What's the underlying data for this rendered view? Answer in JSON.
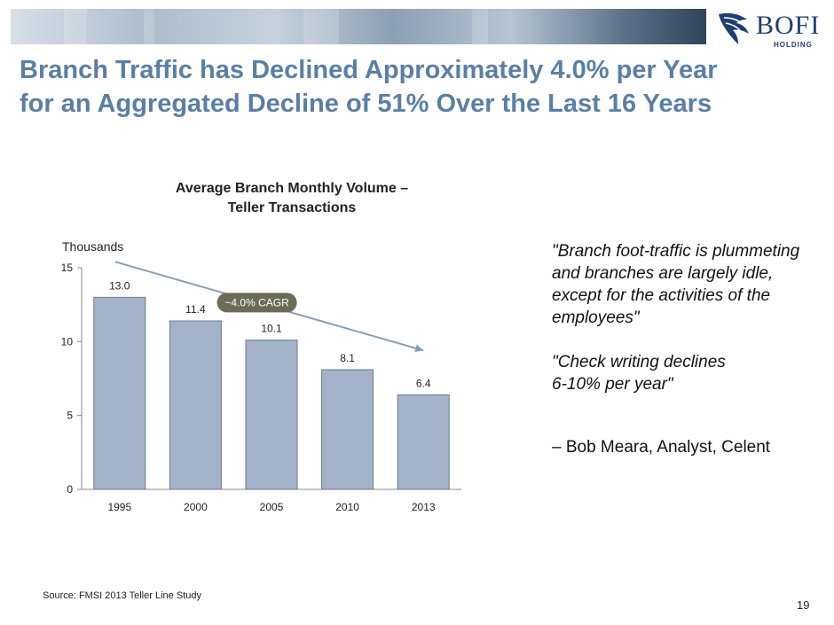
{
  "slide": {
    "title": "Branch Traffic has Declined Approximately 4.0% per Year for an Aggregated Decline of  51% Over the Last 16 Years",
    "logo_text": "BOFI",
    "logo_subtext": "HOLDING",
    "quote": "\"Branch foot-traffic is plummeting and branches are largely idle, except for the activities of the employees\"\n\n\"Check writing declines\n6-10% per year\"",
    "attribution": "– Bob Meara, Analyst, Celent",
    "source": "Source: FMSI 2013 Teller Line Study",
    "page_number": "19"
  },
  "colors": {
    "title": "#5a7fa6",
    "bar": "#a3b1c9",
    "bar_stroke": "#6c7b93",
    "badge": "#6b6b57",
    "arrow": "#8a9db8"
  },
  "chart_data": {
    "type": "bar",
    "title": "Average Branch Monthly Volume – Teller Transactions",
    "title_lines": [
      "Average Branch Monthly Volume –",
      "Teller Transactions"
    ],
    "ylabel": "Thousands",
    "xlabel": "",
    "categories": [
      "1995",
      "2000",
      "2005",
      "2010",
      "2013"
    ],
    "values": [
      13.0,
      11.4,
      10.1,
      8.1,
      6.4
    ],
    "value_labels": [
      "13.0",
      "11.4",
      "10.1",
      "8.1",
      "6.4"
    ],
    "ylim": [
      0,
      15
    ],
    "yticks": [
      0,
      5,
      10,
      15
    ],
    "grid": false,
    "annotation": {
      "label": "~4.0% CAGR",
      "type": "trend-arrow",
      "from": {
        "x": "1995",
        "y": 15.4
      },
      "to": {
        "x": "2013",
        "y": 9.4
      }
    }
  }
}
